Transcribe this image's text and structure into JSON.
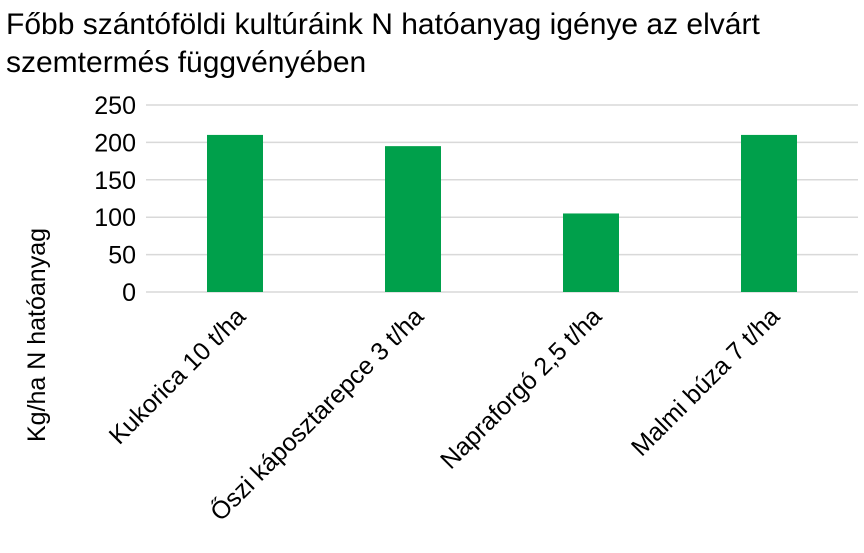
{
  "chart_data": {
    "type": "bar",
    "title_lines": [
      "Főbb szántóföldi kultúráink N hatóanyag igénye az elvárt",
      "szemtermés függvényében"
    ],
    "xlabel": "",
    "ylabel": "Kg/ha N hatóanyag",
    "categories": [
      "Kukorica 10 t/ha",
      "Őszi káposztarepce 3 t/ha",
      "Napraforgó 2,5 t/ha",
      "Malmi búza 7 t/ha"
    ],
    "values": [
      210,
      195,
      105,
      210
    ],
    "ylim": [
      0,
      250
    ],
    "yticks": [
      "0",
      "50",
      "100",
      "150",
      "200",
      "250"
    ],
    "grid": true,
    "bar_color": "#00A04B"
  }
}
